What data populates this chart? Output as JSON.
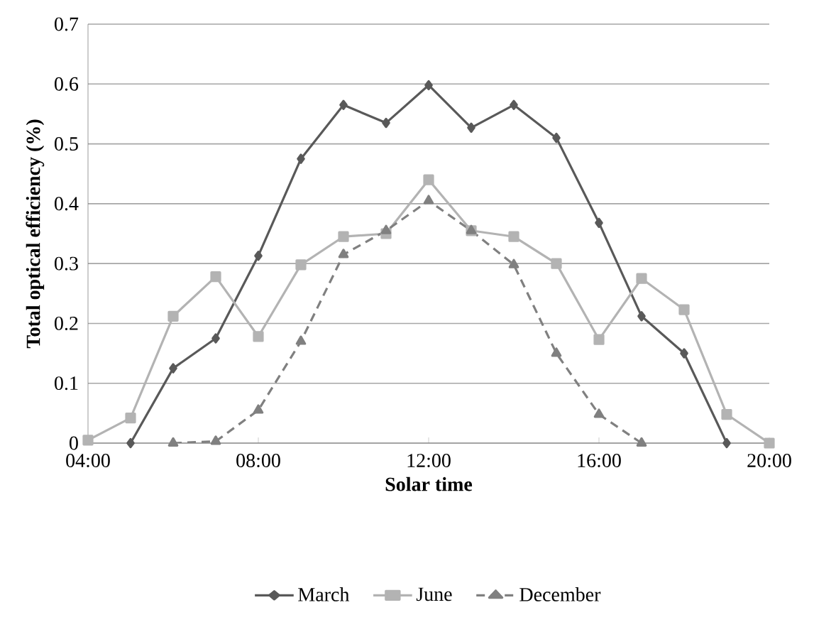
{
  "chart_data": {
    "type": "line",
    "xlabel": "Solar time",
    "ylabel": "Total optical efficiency (%)",
    "xlim": [
      4,
      20
    ],
    "xticks": [
      {
        "value": 4,
        "label": "04:00"
      },
      {
        "value": 8,
        "label": "08:00"
      },
      {
        "value": 12,
        "label": "12:00"
      },
      {
        "value": 16,
        "label": "16:00"
      },
      {
        "value": 20,
        "label": "20:00"
      }
    ],
    "ylim": [
      0,
      0.7
    ],
    "yticks": [
      0,
      0.1,
      0.2,
      0.3,
      0.4,
      0.5,
      0.6,
      0.7
    ],
    "grid": "y",
    "legend": "bottom",
    "series": [
      {
        "name": "March",
        "color": "#595959",
        "marker": "diamond",
        "line_style": "solid",
        "x": [
          5,
          6,
          7,
          8,
          9,
          10,
          11,
          12,
          13,
          14,
          15,
          16,
          17,
          18,
          19
        ],
        "values": [
          0,
          0.125,
          0.175,
          0.313,
          0.475,
          0.565,
          0.535,
          0.598,
          0.527,
          0.565,
          0.51,
          0.368,
          0.212,
          0.15,
          0
        ]
      },
      {
        "name": "June",
        "color": "#b3b3b3",
        "marker": "square",
        "line_style": "solid",
        "x": [
          4,
          5,
          6,
          7,
          8,
          9,
          10,
          11,
          12,
          13,
          14,
          15,
          16,
          17,
          18,
          19,
          20
        ],
        "values": [
          0.005,
          0.042,
          0.212,
          0.278,
          0.178,
          0.298,
          0.345,
          0.35,
          0.44,
          0.355,
          0.345,
          0.3,
          0.173,
          0.275,
          0.223,
          0.048,
          0
        ]
      },
      {
        "name": "December",
        "color": "#808080",
        "marker": "triangle",
        "line_style": "dashed",
        "x": [
          6,
          7,
          8,
          9,
          10,
          11,
          12,
          13,
          14,
          15,
          16,
          17
        ],
        "values": [
          0,
          0.003,
          0.055,
          0.17,
          0.315,
          0.355,
          0.405,
          0.355,
          0.298,
          0.15,
          0.048,
          0
        ]
      }
    ]
  }
}
